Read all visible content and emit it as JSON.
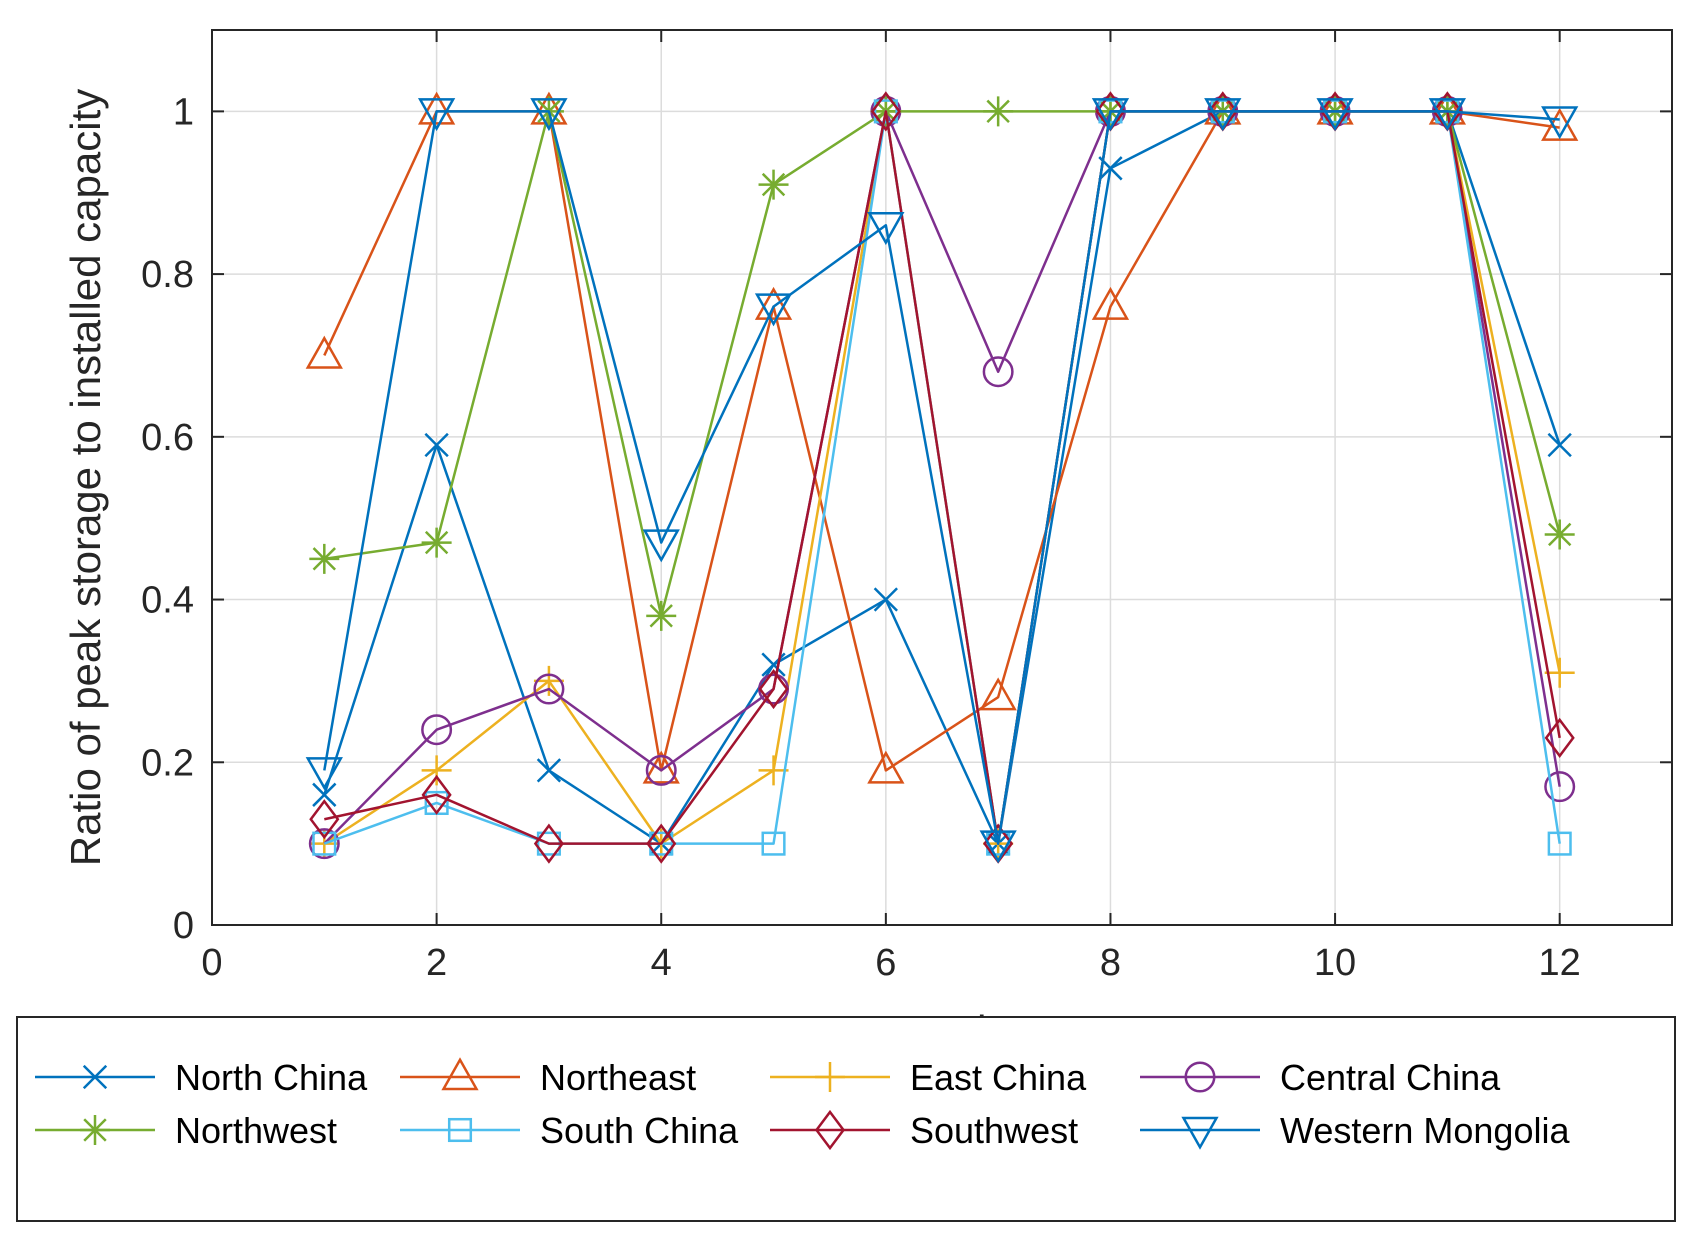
{
  "chart_data": {
    "type": "line",
    "title": "",
    "xlabel": "month",
    "ylabel": "Ratio of peak storage to installed capacity",
    "xlim": [
      0,
      13
    ],
    "ylim": [
      0,
      1.1
    ],
    "xticks": [
      0,
      2,
      4,
      6,
      8,
      10,
      12
    ],
    "yticks": [
      0,
      0.2,
      0.4,
      0.6,
      0.8,
      1
    ],
    "xtick_labels": [
      "0",
      "2",
      "4",
      "6",
      "8",
      "10",
      "12"
    ],
    "ytick_labels": [
      "0",
      "0.2",
      "0.4",
      "0.6",
      "0.8",
      "1"
    ],
    "grid": true,
    "legend_position": "bottom",
    "x": [
      1,
      2,
      3,
      4,
      5,
      6,
      7,
      8,
      9,
      10,
      11,
      12
    ],
    "series": [
      {
        "name": "North China",
        "color": "#0072BD",
        "marker": "x",
        "values": [
          0.16,
          0.59,
          0.19,
          0.1,
          0.32,
          0.4,
          0.1,
          0.93,
          1.0,
          1.0,
          1.0,
          0.59
        ]
      },
      {
        "name": "Northeast",
        "color": "#D95319",
        "marker": "triangle-up",
        "values": [
          0.7,
          1.0,
          1.0,
          0.19,
          0.76,
          0.19,
          0.28,
          0.76,
          1.0,
          1.0,
          1.0,
          0.98
        ]
      },
      {
        "name": "East China",
        "color": "#EDB120",
        "marker": "plus",
        "values": [
          0.1,
          0.19,
          0.3,
          0.1,
          0.19,
          1.0,
          0.1,
          1.0,
          1.0,
          1.0,
          1.0,
          0.31
        ]
      },
      {
        "name": "Central China",
        "color": "#7E2F8E",
        "marker": "circle",
        "values": [
          0.1,
          0.24,
          0.29,
          0.19,
          0.29,
          1.0,
          0.68,
          1.0,
          1.0,
          1.0,
          1.0,
          0.17
        ]
      },
      {
        "name": "Northwest",
        "color": "#77AC30",
        "marker": "asterisk",
        "values": [
          0.45,
          0.47,
          1.0,
          0.38,
          0.91,
          1.0,
          1.0,
          1.0,
          1.0,
          1.0,
          1.0,
          0.48
        ]
      },
      {
        "name": "South China",
        "color": "#4DBEEE",
        "marker": "square",
        "values": [
          0.1,
          0.15,
          0.1,
          0.1,
          0.1,
          1.0,
          0.1,
          1.0,
          1.0,
          1.0,
          1.0,
          0.1
        ]
      },
      {
        "name": "Southwest",
        "color": "#A2142F",
        "marker": "diamond",
        "values": [
          0.13,
          0.16,
          0.1,
          0.1,
          0.29,
          1.0,
          0.1,
          1.0,
          1.0,
          1.0,
          1.0,
          0.23
        ]
      },
      {
        "name": "Western Mongolia",
        "color": "#0072BD",
        "marker": "triangle-down",
        "values": [
          0.19,
          1.0,
          1.0,
          0.47,
          0.76,
          0.86,
          0.1,
          1.0,
          1.0,
          1.0,
          1.0,
          0.99
        ]
      }
    ]
  }
}
